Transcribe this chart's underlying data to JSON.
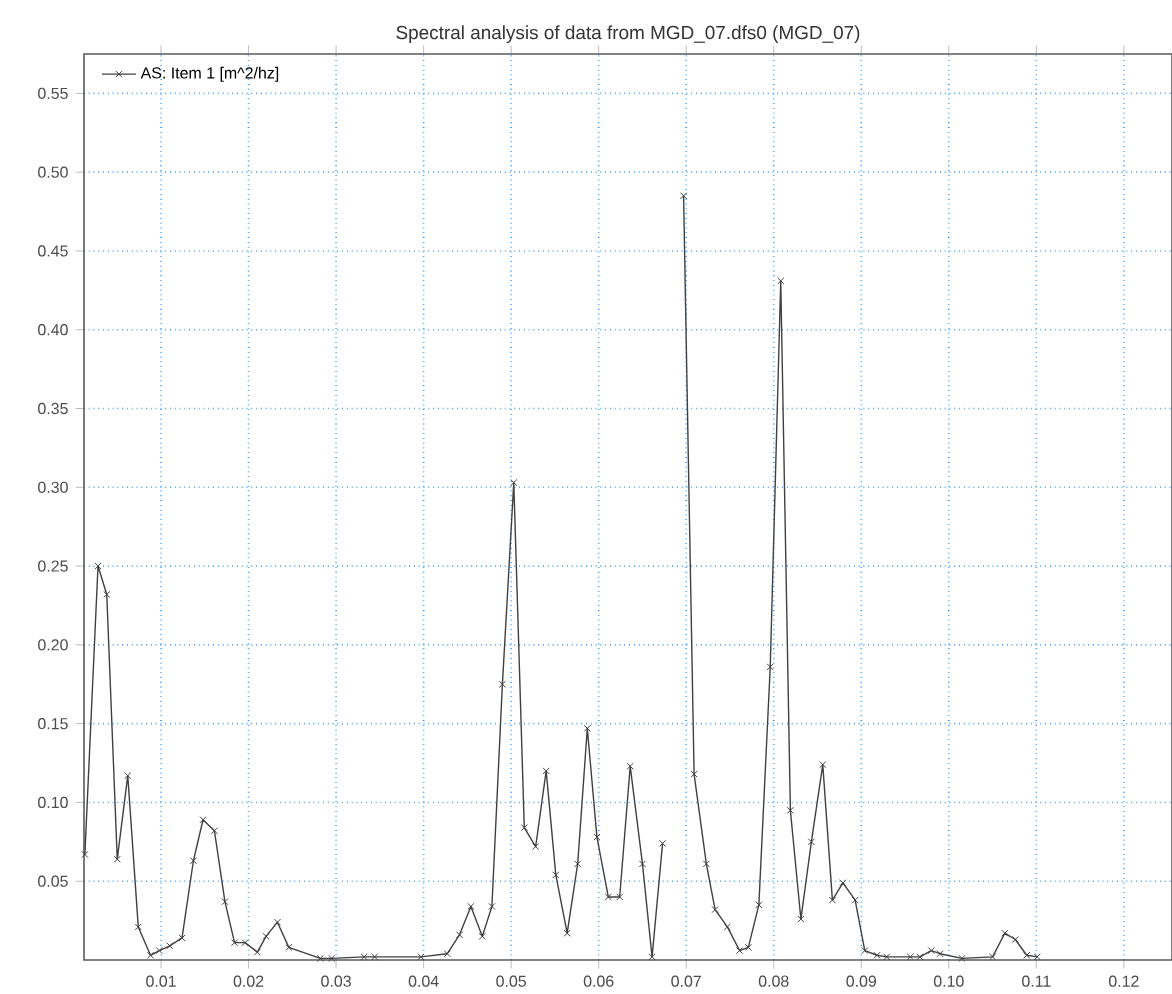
{
  "chart_data": {
    "type": "line",
    "title": "Spectral analysis of data from MGD_07.dfs0 (MGD_07)",
    "x": [
      0.0013,
      0.0028,
      0.0038,
      0.005,
      0.0062,
      0.0074,
      0.0088,
      0.0098,
      0.011,
      0.0124,
      0.0137,
      0.0148,
      0.0161,
      0.0173,
      0.0184,
      0.0196,
      0.021,
      0.022,
      0.0233,
      0.0246,
      0.0282,
      0.0295,
      0.0332,
      0.0344,
      0.0397,
      0.0427,
      0.0441,
      0.0454,
      0.0467,
      0.0478,
      0.049,
      0.0503,
      0.0515,
      0.0528,
      0.054,
      0.0551,
      0.0564,
      0.0576,
      0.0587,
      0.0598,
      0.0611,
      0.0624,
      0.0636,
      0.065,
      0.0661,
      0.0673,
      0.0686,
      0.0697,
      0.0709,
      0.0723,
      0.0733,
      0.0747,
      0.0761,
      0.0771,
      0.0783,
      0.0796,
      0.0808,
      0.0819,
      0.0831,
      0.0843,
      0.0856,
      0.0867,
      0.0879,
      0.0893,
      0.0904,
      0.0918,
      0.0929,
      0.0956,
      0.0967,
      0.098,
      0.099,
      0.1015,
      0.105,
      0.1064,
      0.1076,
      0.1089,
      0.1101
    ],
    "series": [
      {
        "name": "AS: Item 1 [m^2/hz]",
        "color": "#404040",
        "values": [
          0.067,
          0.25,
          0.232,
          0.064,
          0.117,
          0.021,
          0.003,
          0.006,
          0.009,
          0.014,
          0.063,
          0.089,
          0.082,
          0.037,
          0.011,
          0.011,
          0.005,
          0.015,
          0.024,
          0.008,
          0.001,
          0.001,
          0.002,
          0.002,
          0.002,
          0.004,
          0.016,
          0.034,
          0.015,
          0.034,
          0.175,
          0.303,
          0.084,
          0.072,
          0.12,
          0.054,
          0.017,
          0.061,
          0.147,
          0.078,
          0.04,
          0.04,
          0.123,
          0.061,
          0.002,
          0.074,
          null,
          0.485,
          0.118,
          0.061,
          0.032,
          0.021,
          0.006,
          0.008,
          0.035,
          0.186,
          0.431,
          0.095,
          0.026,
          0.075,
          0.124,
          0.038,
          0.049,
          0.038,
          0.006,
          0.003,
          0.002,
          0.002,
          0.002,
          0.006,
          0.004,
          0.001,
          0.002,
          0.017,
          0.013,
          0.003,
          0.002
        ]
      }
    ],
    "xlim": [
      0.0012,
      0.1255
    ],
    "ylim": [
      0,
      0.575
    ],
    "xticks": [
      0.01,
      0.02,
      0.03,
      0.04,
      0.05,
      0.06,
      0.07,
      0.08,
      0.09,
      {
        "value": 0.1,
        "label": "0.10"
      },
      0.11,
      0.12
    ],
    "yticks": [
      0.05,
      {
        "value": 0.1,
        "label": "0.10"
      },
      0.15,
      {
        "value": 0.2,
        "label": "0.20"
      },
      0.25,
      {
        "value": 0.3,
        "label": "0.30"
      },
      0.35,
      {
        "value": 0.4,
        "label": "0.40"
      },
      0.45,
      {
        "value": 0.5,
        "label": "0.50"
      },
      0.55
    ],
    "grid": true,
    "legend": "top left",
    "marker": "cross",
    "line_style": "solid"
  }
}
